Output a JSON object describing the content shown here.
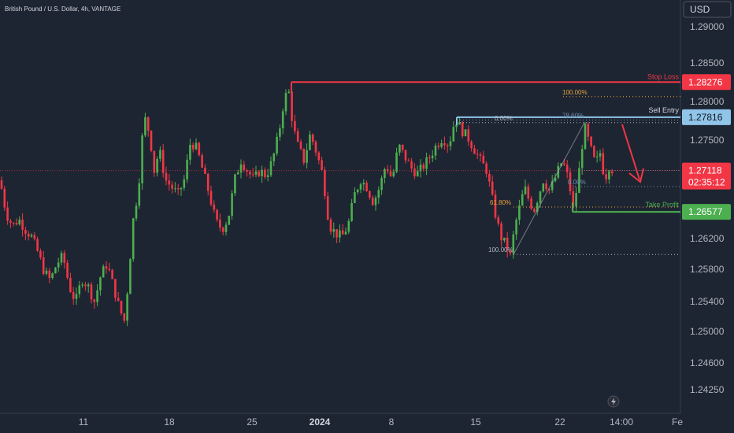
{
  "header": {
    "symbol_title": "British Pound / U.S. Dollar, 4h, VANTAGE"
  },
  "currency_button": "USD",
  "colors": {
    "up": "#4caf50",
    "down": "#f23645",
    "background": "#1e2532",
    "axis_text": "#b2b5be"
  },
  "icons": {
    "lightning": "lightning-icon"
  },
  "chart_data": {
    "type": "candlestick",
    "title": "British Pound / U.S. Dollar, 4h, VANTAGE",
    "y_axis": {
      "min": 1.2425,
      "max": 1.29,
      "ticks": [
        "1.29000",
        "1.28500",
        "1.28000",
        "1.27500",
        "1.27000",
        "1.26620",
        "1.26200",
        "1.25800",
        "1.25400",
        "1.25000",
        "1.24600",
        "1.24250"
      ]
    },
    "x_axis": {
      "labels": [
        "11",
        "18",
        "25",
        "2024",
        "8",
        "15",
        "22",
        "14:00",
        "Fe"
      ]
    },
    "price_path": [
      [
        0,
        1.2699
      ],
      [
        8,
        1.2655
      ],
      [
        16,
        1.264
      ],
      [
        24,
        1.2648
      ],
      [
        32,
        1.2635
      ],
      [
        40,
        1.2625
      ],
      [
        48,
        1.2605
      ],
      [
        56,
        1.258
      ],
      [
        64,
        1.2568
      ],
      [
        72,
        1.259
      ],
      [
        80,
        1.26
      ],
      [
        88,
        1.256
      ],
      [
        96,
        1.254
      ],
      [
        104,
        1.257
      ],
      [
        112,
        1.256
      ],
      [
        120,
        1.254
      ],
      [
        128,
        1.2575
      ],
      [
        136,
        1.259
      ],
      [
        144,
        1.256
      ],
      [
        152,
        1.253
      ],
      [
        158,
        1.2515
      ],
      [
        164,
        1.258
      ],
      [
        168,
        1.264
      ],
      [
        172,
        1.2665
      ],
      [
        176,
        1.269
      ],
      [
        180,
        1.275
      ],
      [
        184,
        1.278
      ],
      [
        190,
        1.276
      ],
      [
        196,
        1.271
      ],
      [
        202,
        1.274
      ],
      [
        210,
        1.27
      ],
      [
        218,
        1.269
      ],
      [
        226,
        1.268
      ],
      [
        234,
        1.27
      ],
      [
        242,
        1.275
      ],
      [
        250,
        1.274
      ],
      [
        258,
        1.271
      ],
      [
        266,
        1.268
      ],
      [
        274,
        1.2645
      ],
      [
        282,
        1.2635
      ],
      [
        290,
        1.265
      ],
      [
        298,
        1.27
      ],
      [
        306,
        1.2725
      ],
      [
        314,
        1.2712
      ],
      [
        322,
        1.27
      ],
      [
        330,
        1.2712
      ],
      [
        338,
        1.2705
      ],
      [
        346,
        1.2725
      ],
      [
        354,
        1.276
      ],
      [
        360,
        1.28
      ],
      [
        366,
        1.282
      ],
      [
        372,
        1.277
      ],
      [
        378,
        1.2745
      ],
      [
        386,
        1.2725
      ],
      [
        394,
        1.276
      ],
      [
        402,
        1.2735
      ],
      [
        410,
        1.2705
      ],
      [
        418,
        1.264
      ],
      [
        426,
        1.263
      ],
      [
        434,
        1.2625
      ],
      [
        442,
        1.264
      ],
      [
        450,
        1.268
      ],
      [
        458,
        1.27
      ],
      [
        466,
        1.269
      ],
      [
        474,
        1.267
      ],
      [
        482,
        1.269
      ],
      [
        490,
        1.272
      ],
      [
        498,
        1.27
      ],
      [
        506,
        1.2745
      ],
      [
        514,
        1.273
      ],
      [
        522,
        1.2715
      ],
      [
        530,
        1.2708
      ],
      [
        538,
        1.2718
      ],
      [
        546,
        1.273
      ],
      [
        554,
        1.2745
      ],
      [
        562,
        1.2755
      ],
      [
        570,
        1.2745
      ],
      [
        578,
        1.278
      ],
      [
        586,
        1.2765
      ],
      [
        594,
        1.2755
      ],
      [
        602,
        1.274
      ],
      [
        610,
        1.2725
      ],
      [
        618,
        1.2712
      ],
      [
        624,
        1.268
      ],
      [
        630,
        1.265
      ],
      [
        636,
        1.2625
      ],
      [
        642,
        1.2615
      ],
      [
        648,
        1.26
      ],
      [
        654,
        1.264
      ],
      [
        660,
        1.2665
      ],
      [
        666,
        1.269
      ],
      [
        672,
        1.2672
      ],
      [
        678,
        1.266
      ],
      [
        684,
        1.268
      ],
      [
        690,
        1.27
      ],
      [
        698,
        1.2685
      ],
      [
        706,
        1.2705
      ],
      [
        714,
        1.2725
      ],
      [
        722,
        1.27
      ],
      [
        728,
        1.266
      ],
      [
        734,
        1.27
      ],
      [
        742,
        1.277
      ],
      [
        750,
        1.274
      ],
      [
        756,
        1.272
      ],
      [
        762,
        1.2735
      ],
      [
        768,
        1.27
      ],
      [
        774,
        1.272
      ],
      [
        778,
        1.2712
      ]
    ],
    "price_lines": [
      {
        "name": "Stop Loss",
        "value": 1.28276,
        "label": "1.28276",
        "color": "#f23645",
        "text": "Stop Loss"
      },
      {
        "name": "Sell Entry",
        "value": 1.27816,
        "label": "1.27816",
        "color": "#90c4e9",
        "text": "Sell Entry"
      },
      {
        "name": "Current",
        "value": 1.27118,
        "label": "1.27118",
        "timer": "02:35:12",
        "color": "#f23645"
      },
      {
        "name": "Take Profit",
        "value": 1.26577,
        "label": "1.26577",
        "color": "#4caf50",
        "text": "Take Profit"
      }
    ],
    "fib_retracement": [
      {
        "label": "100.00%",
        "value": 1.28085,
        "color": "#e6a23c"
      },
      {
        "label": "78.60%",
        "value": 1.2778,
        "color": "#6e8fb0"
      },
      {
        "label": "0.00%",
        "value": 1.27745,
        "color": "#b2b5be"
      },
      {
        "label": "61.80%",
        "value": 1.2664,
        "color": "#e6a23c"
      },
      {
        "label": "0.00%",
        "value": 1.2691,
        "color": "#6e8fb0"
      },
      {
        "label": "100.00%",
        "value": 1.2602,
        "color": "#b2b5be"
      }
    ],
    "grid": false
  }
}
